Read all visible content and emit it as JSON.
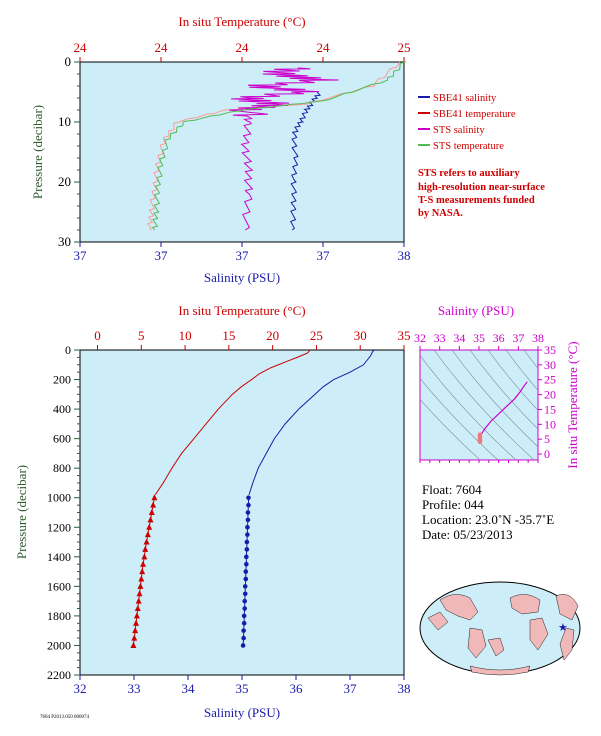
{
  "chart_data": [
    {
      "type": "line",
      "panel": "surface-profile",
      "top_axis_label": "In situ Temperature (°C)",
      "bottom_axis_label": "Salinity (PSU)",
      "ylabel": "Pressure (decibar)",
      "temp_ticks": [
        "24",
        "24",
        "24",
        "24",
        "25"
      ],
      "sal_ticks": [
        "37",
        "37",
        "37",
        "37",
        "38"
      ],
      "p_ticks": [
        "0",
        "10",
        "20",
        "30"
      ],
      "ylim": [
        0,
        30
      ],
      "legend": [
        {
          "name": "SBE41 salinity",
          "color": "#1a1aaa"
        },
        {
          "name": "SBE41 temperature",
          "color": "#cc0000"
        },
        {
          "name": "STS salinity",
          "color": "#cc00cc"
        },
        {
          "name": "STS temperature",
          "color": "#55bb55"
        }
      ],
      "note_lines": [
        "STS refers to auxiliary",
        "high-resolution near-surface",
        "T-S measurements funded",
        "by NASA."
      ],
      "series": [
        {
          "name": "SBE41 salinity",
          "x_frac": [
            0.74,
            0.72,
            0.7,
            0.68,
            0.66,
            0.665,
            0.66,
            0.66,
            0.655
          ],
          "pressure": [
            5,
            6.5,
            8,
            10,
            12,
            16,
            20,
            24,
            28
          ]
        },
        {
          "name": "SBE41 temperature",
          "x_frac": [
            0.99,
            0.9,
            0.7,
            0.45,
            0.3,
            0.26,
            0.24,
            0.23,
            0.22,
            0.215
          ],
          "pressure": [
            0,
            4,
            7,
            8,
            10,
            13,
            17,
            21,
            25,
            28
          ]
        },
        {
          "name": "STS salinity",
          "x_frac": [
            0.66,
            0.6,
            0.75,
            0.55,
            0.7,
            0.5,
            0.6,
            0.52,
            0.52,
            0.51,
            0.52,
            0.52,
            0.51
          ],
          "pressure": [
            1,
            2,
            3,
            4,
            5,
            6,
            7,
            8,
            10,
            14,
            18,
            22,
            28
          ],
          "jitter": true
        },
        {
          "name": "STS temperature",
          "x_frac": [
            1.0,
            0.95,
            0.75,
            0.5,
            0.32,
            0.27,
            0.25,
            0.24,
            0.235,
            0.23
          ],
          "pressure": [
            0,
            3,
            6.5,
            8,
            10,
            13,
            17,
            21,
            25,
            28
          ]
        }
      ]
    },
    {
      "type": "line",
      "panel": "full-profile",
      "top_axis_label": "In situ Temperature (°C)",
      "bottom_axis_label": "Salinity (PSU)",
      "ylabel": "Pressure (decibar)",
      "temp_ticks": [
        0,
        5,
        10,
        15,
        20,
        25,
        30,
        35
      ],
      "sal_ticks": [
        32,
        33,
        34,
        35,
        36,
        37,
        38
      ],
      "p_ticks": [
        0,
        200,
        400,
        600,
        800,
        1000,
        1200,
        1400,
        1600,
        1800,
        2000,
        2200
      ],
      "xlim_temp": [
        -2,
        35
      ],
      "xlim_sal": [
        32,
        38
      ],
      "ylim": [
        0,
        2200
      ],
      "series": [
        {
          "name": "temperature",
          "color": "#cc0000",
          "pressure": [
            0,
            5,
            20,
            50,
            80,
            120,
            160,
            200,
            250,
            300,
            400,
            500,
            600,
            700,
            800,
            900,
            980
          ],
          "values": [
            24.3,
            24.2,
            24.0,
            22.8,
            21.5,
            19.8,
            18.5,
            17.6,
            16.4,
            15.4,
            13.8,
            12.4,
            11.0,
            9.6,
            8.5,
            7.5,
            6.6
          ]
        },
        {
          "name": "temperature-deep",
          "color": "#cc0000",
          "marker": "triangle",
          "pressure": [
            1000,
            1050,
            1100,
            1150,
            1200,
            1250,
            1300,
            1350,
            1400,
            1450,
            1500,
            1550,
            1600,
            1650,
            1700,
            1750,
            1800,
            1850,
            1900,
            1950,
            2000
          ],
          "values": [
            6.5,
            6.35,
            6.2,
            6.05,
            5.9,
            5.75,
            5.6,
            5.45,
            5.35,
            5.2,
            5.1,
            5.0,
            4.9,
            4.8,
            4.7,
            4.6,
            4.5,
            4.4,
            4.3,
            4.2,
            4.1
          ]
        },
        {
          "name": "salinity",
          "color": "#1a1aaa",
          "pressure": [
            0,
            10,
            40,
            100,
            150,
            200,
            250,
            300,
            400,
            500,
            600,
            700,
            800,
            900,
            980
          ],
          "values": [
            37.45,
            37.42,
            37.38,
            37.25,
            37.0,
            36.7,
            36.5,
            36.35,
            36.05,
            35.8,
            35.6,
            35.45,
            35.3,
            35.2,
            35.13
          ]
        },
        {
          "name": "salinity-deep",
          "color": "#1a1aaa",
          "marker": "circle",
          "pressure": [
            1000,
            1050,
            1100,
            1150,
            1200,
            1250,
            1300,
            1350,
            1400,
            1450,
            1500,
            1550,
            1600,
            1650,
            1700,
            1750,
            1800,
            1850,
            1900,
            1950,
            2000
          ],
          "values": [
            35.12,
            35.12,
            35.11,
            35.11,
            35.1,
            35.1,
            35.09,
            35.09,
            35.08,
            35.08,
            35.07,
            35.07,
            35.06,
            35.06,
            35.05,
            35.05,
            35.04,
            35.04,
            35.03,
            35.03,
            35.02
          ]
        }
      ]
    },
    {
      "type": "scatter",
      "panel": "ts-diagram",
      "xlabel": "Salinity (PSU)",
      "ylabel": "In situ Temperature (°C)",
      "x_ticks": [
        32,
        33,
        34,
        35,
        36,
        37,
        38
      ],
      "y_ticks": [
        0,
        5,
        10,
        15,
        20,
        25,
        30,
        35
      ],
      "xlim": [
        32,
        38
      ],
      "ylim": [
        -2,
        35
      ],
      "curve": {
        "sal": [
          35.0,
          35.05,
          35.1,
          35.3,
          35.6,
          36.0,
          36.4,
          36.8,
          37.1,
          37.3,
          37.45
        ],
        "temp": [
          4.2,
          5.5,
          6.5,
          8.5,
          11.0,
          13.5,
          16.0,
          18.5,
          21.0,
          23.0,
          24.3
        ]
      },
      "deep_cluster": {
        "sal": 35.05,
        "temp_range": [
          4.1,
          6.5
        ]
      }
    }
  ],
  "float_info": {
    "float": "Float:  7604",
    "profile": "Profile:  044",
    "location": "Location:  23.0˚N  -35.7˚E",
    "date": "Date:  05/23/2013"
  },
  "footer_text": "7604 P2013.050 000074",
  "map": {
    "marker_label": "★"
  },
  "colors": {
    "panel_bg": "#cdeef8",
    "red": "#cc0000",
    "blue": "#1a1aaa",
    "magenta": "#cc00cc",
    "green": "#55bb55",
    "axis_green": "#2e5d2e"
  }
}
